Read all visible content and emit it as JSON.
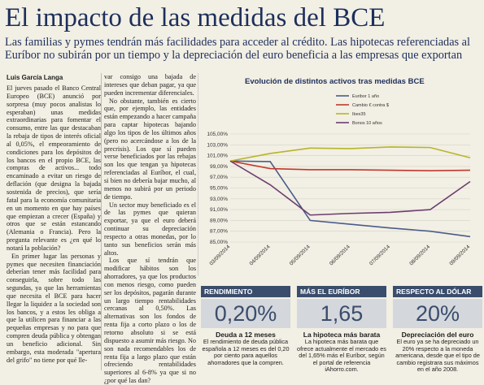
{
  "headline": "El impacto de las medidas del BCE",
  "deck": "Las familias y pymes tendrán más facilidades para acceder al crédito. Las hipotecas referenciadas al Euríbor no subirán por un tiempo y la depreciación del euro beneficia a las empresas que exportan",
  "byline": "Luis García Langa",
  "col1": [
    "El jueves pasado el Banco Central Europeo (BCE) anunció por sorpresa (muy pocos analistas lo esperaban) unas medidas extraordinarias para fomentar el consumo, entre las que destacaban la rebaja de tipos de interés oficial al 0,05%, el empeoramiento de condiciones para los depósitos de los bancos en el propio BCE, las compras de activos... todo encaminado a evitar un riesgo de deflación (que designa la bajada sostenida de precios), que sería fatal para la economía comunitaria en un momento en que hay países que empiezan a crecer (España) y otros que se están estancando (Alemania o Francia). Pero la pregunta relevante es ¿en qué lo notará la población?",
    "En primer lugar las personas y pymes que necesiten financiación deberían tener más facilidad para conseguirla, sobre todo las segundas, ya que las herramientas que necesita el BCE para hacer llegar la liquidez a la sociedad son los bancos, y a estos les obliga a que la utilicen para financiar a las pequeñas empresas y no para que compren deuda pública y obtengan un beneficio adicional. Sin embargo, esta moderada \"apertura del grifo\" no tiene por qué lle-"
  ],
  "col2": [
    "var consigo una bajada de intereses que deban pagar, ya que pueden incrementar diferenciales.",
    "No obstante, también es cierto que, por ejemplo, las entidades están empezando a hacer campaña para captar hipotecas bajando algo los tipos de los últimos años (pero no acercándose a los de la precrisis). Los que sí pueden verse beneficiados por las rebajas son los que tengan ya hipotecas referenciadas al Euríbor, el cual, si bien no debería bajar mucho, al menos no subirá por un periodo de tiempo.",
    "Un sector muy beneficiado es el de las pymes que quieran exportar, ya que el euro deberá continuar su depreciación respecto a otras monedas, por lo tanto sus beneficios serán más altos.",
    "Los que sí tendrán que modificar hábitos son los ahorradores, ya que los productos con menos riesgo, como pueden ser los depósitos, pagarán durante un largo tiempo rentabilidades cercanas al 0,50%. Las alternativas son los fondos de renta fija a corto plazo o los de retorno absoluto si se está dispuesto a asumir más riesgo. No son nada recomendables los de renta fija a largo plazo que están ofreciendo rentabilidades superiores al 6-8% ya que si no ¿por qué las dan?"
  ],
  "chart_data": {
    "type": "line",
    "title": "Evolución de distintos activos tras medidas BCE",
    "x": [
      "03/09/2014",
      "04/09/2014",
      "05/09/2014",
      "06/09/2014",
      "07/09/2014",
      "08/09/2014",
      "09/09/2014"
    ],
    "ylim": [
      85,
      105
    ],
    "yticks": [
      "85,00%",
      "87,00%",
      "89,00%",
      "91,00%",
      "93,00%",
      "95,00%",
      "97,00%",
      "99,00%",
      "101,00%",
      "103,00%",
      "105,00%"
    ],
    "series": [
      {
        "name": "Euribor 1 año",
        "color": "#4a5c8a",
        "values": [
          100,
          99.9,
          89.0,
          88.3,
          87.6,
          87.0,
          86.0
        ]
      },
      {
        "name": "Cambio € contra $",
        "color": "#c0392b",
        "values": [
          100,
          98.6,
          98.4,
          98.4,
          98.3,
          98.2,
          98.3
        ]
      },
      {
        "name": "Ibex35",
        "color": "#b7b52a",
        "values": [
          100,
          101.4,
          102.4,
          102.3,
          102.6,
          102.5,
          100.6
        ]
      },
      {
        "name": "Bonos 10 años",
        "color": "#6b3d6e",
        "values": [
          100,
          95.6,
          90.0,
          90.3,
          90.5,
          91.0,
          96.2
        ]
      }
    ]
  },
  "panels": [
    {
      "head": "RENDIMIENTO",
      "num": "0,20%",
      "sub": "Deuda a 12 meses",
      "text": "El rendimiento de deuda pública española a 12 meses es del 0,20 por ciento para aquellos ahorradores que la compren."
    },
    {
      "head": "MÁS EL EURÍBOR",
      "num": "1,65",
      "sub": "La hipoteca más barata",
      "text": "La hipoteca más barata que ofrece actualmente el mercado es del 1,65% más el Euríbor, según el portal de referencia iAhorro.com."
    },
    {
      "head": "RESPECTO AL DÓLAR",
      "num": "20%",
      "sub": "Depreciación del euro",
      "text": "El euro ya se ha depreciado un 20% respecto a la moneda americana, desde que el tipo de cambio registrara sus máximos en el año 2008."
    }
  ]
}
